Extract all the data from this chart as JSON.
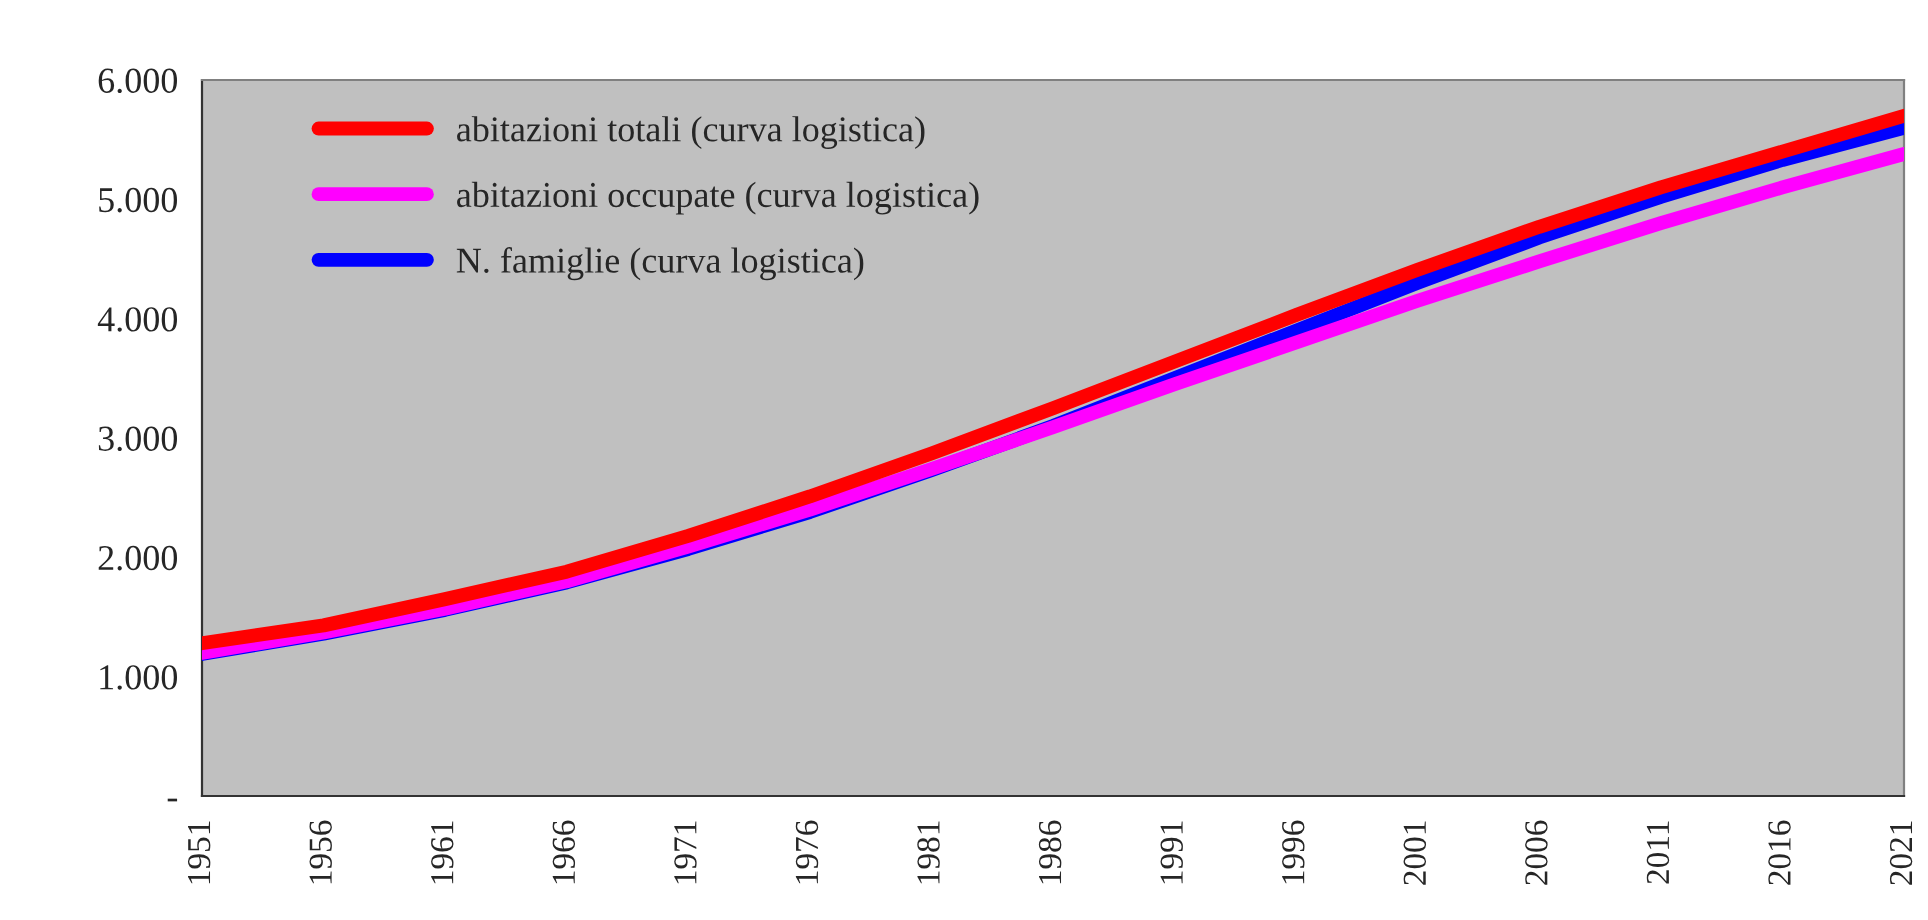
{
  "chart_data": {
    "type": "line",
    "x": [
      1951,
      1956,
      1961,
      1966,
      1971,
      1976,
      1981,
      1986,
      1991,
      1996,
      2001,
      2006,
      2011,
      2016,
      2021
    ],
    "series": [
      {
        "name": "abitazioni totali (curva logistica)",
        "color": "#ff0000",
        "values": [
          1280,
          1430,
          1650,
          1880,
          2180,
          2510,
          2870,
          3250,
          3640,
          4030,
          4410,
          4770,
          5100,
          5400,
          5700
        ]
      },
      {
        "name": "abitazioni occupate (curva logistica)",
        "color": "#ff00ff",
        "values": [
          1200,
          1370,
          1570,
          1800,
          2090,
          2400,
          2740,
          3090,
          3450,
          3800,
          4150,
          4480,
          4800,
          5100,
          5380
        ]
      },
      {
        "name": "N. famiglie (curva logistica)",
        "color": "#0000ff",
        "values": [
          1190,
          1360,
          1560,
          1790,
          2070,
          2380,
          2730,
          3100,
          3500,
          3900,
          4300,
          4680,
          5020,
          5330,
          5600
        ]
      }
    ],
    "xlim": [
      1951,
      2021
    ],
    "xticks": [
      1951,
      1956,
      1961,
      1966,
      1971,
      1976,
      1981,
      1986,
      1991,
      1996,
      2001,
      2006,
      2011,
      2016,
      2021
    ],
    "ylim": [
      0,
      6000
    ],
    "yticks": [
      {
        "value": 0,
        "label": "-"
      },
      {
        "value": 1000,
        "label": "1.000"
      },
      {
        "value": 2000,
        "label": "2.000"
      },
      {
        "value": 3000,
        "label": "3.000"
      },
      {
        "value": 4000,
        "label": "4.000"
      },
      {
        "value": 5000,
        "label": "5.000"
      },
      {
        "value": 6000,
        "label": "6.000"
      }
    ],
    "grid": false,
    "legend": "top left",
    "marker": "none",
    "line_style": "solid"
  }
}
